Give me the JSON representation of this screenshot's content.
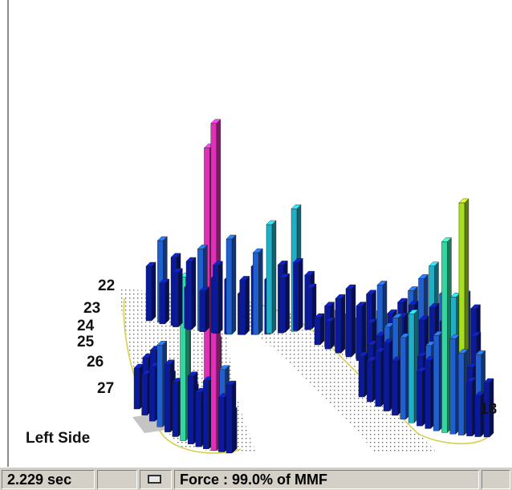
{
  "chart_data": {
    "type": "bar",
    "title": "",
    "side_label": "Left Side",
    "tooth_labels": [
      "22",
      "23",
      "24",
      "25",
      "26",
      "27",
      "18"
    ],
    "color_scale": [
      "#0a1a9a",
      "#1f5fd0",
      "#1fb0c8",
      "#33d6a0",
      "#a8e020",
      "#e030b8"
    ],
    "series": [
      {
        "values": [
          3,
          4,
          3,
          5,
          4,
          3,
          6,
          4,
          5,
          3,
          4,
          9,
          12,
          4,
          5,
          3,
          4,
          22,
          5,
          8,
          24,
          6,
          4,
          3,
          5
        ]
      },
      {
        "values": [
          4,
          6,
          3,
          5,
          4,
          3,
          5,
          6,
          3,
          4,
          5,
          4,
          7,
          3,
          4,
          5,
          6,
          4,
          8,
          5,
          4,
          9,
          5,
          4,
          3
        ]
      },
      {
        "values": [
          2,
          3,
          2,
          3,
          4,
          3,
          5,
          3,
          4,
          5,
          3,
          4,
          6,
          4,
          3,
          5,
          4,
          6,
          5,
          7,
          4,
          8,
          5,
          6,
          4,
          3,
          5,
          4,
          6,
          5,
          3
        ]
      },
      {
        "values": [
          3,
          4,
          3,
          5,
          4,
          6,
          5,
          7,
          4,
          5,
          6,
          4,
          8,
          5,
          4,
          6,
          5,
          4,
          7,
          5,
          14,
          10,
          7,
          17,
          6,
          5,
          4,
          6,
          3,
          4
        ]
      }
    ]
  },
  "status": {
    "time": "2.229 sec",
    "force": "Force : 99.0% of MMF"
  }
}
